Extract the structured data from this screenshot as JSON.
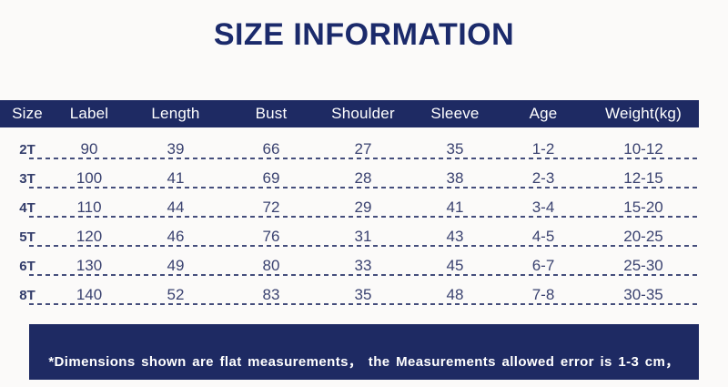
{
  "colors": {
    "bar_navy": "#1e2a63",
    "title_navy": "#1b2a6b",
    "cell_text_navy": "#3a4270",
    "dash_navy": "#454e7c",
    "background": "#fbfaf9",
    "header_text": "#ffffff"
  },
  "chart_data": {
    "type": "table",
    "title": "SIZE INFORMATION",
    "columns": [
      "Size",
      "Label",
      "Length",
      "Bust",
      "Shoulder",
      "Sleeve",
      "Age",
      "Weight(kg)"
    ],
    "rows": [
      [
        "2T",
        "90",
        "39",
        "66",
        "27",
        "35",
        "1-2",
        "10-12"
      ],
      [
        "3T",
        "100",
        "41",
        "69",
        "28",
        "38",
        "2-3",
        "12-15"
      ],
      [
        "4T",
        "110",
        "44",
        "72",
        "29",
        "41",
        "3-4",
        "15-20"
      ],
      [
        "5T",
        "120",
        "46",
        "76",
        "31",
        "43",
        "4-5",
        "20-25"
      ],
      [
        "6T",
        "130",
        "49",
        "80",
        "33",
        "45",
        "6-7",
        "25-30"
      ],
      [
        "8T",
        "140",
        "52",
        "83",
        "35",
        "48",
        "7-8",
        "30-35"
      ]
    ],
    "footnote": "*Dimensions shown are flat measurements， the Measurements allowed error is 1-3 cm，"
  }
}
